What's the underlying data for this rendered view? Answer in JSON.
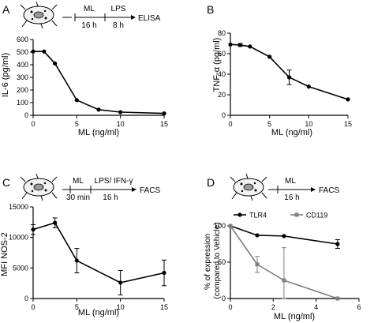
{
  "panels": [
    {
      "id": "A",
      "schematic": {
        "steps": [
          "ML",
          "LPS"
        ],
        "times": [
          "16 h",
          "8 h"
        ],
        "end": "ELISA"
      },
      "chart_data": {
        "type": "line",
        "xlabel": "ML (ng/ml)",
        "ylabel": "IL-6 (pg/ml)",
        "xlim": [
          0,
          15
        ],
        "ylim": [
          0,
          600
        ],
        "xticks": [
          0,
          5,
          10,
          15
        ],
        "yticks": [
          0,
          100,
          200,
          300,
          400,
          500,
          600
        ],
        "series": [
          {
            "x": [
              0,
              1.25,
              2.5,
              5,
              7.5,
              10,
              15
            ],
            "y": [
              505,
              505,
              410,
              120,
              45,
              25,
              15
            ],
            "err": [
              0,
              0,
              0,
              0,
              0,
              0,
              0
            ],
            "color": "#000000",
            "marker": "circle"
          }
        ]
      }
    },
    {
      "id": "B",
      "chart_data": {
        "type": "line",
        "xlabel": "ML (ng/ml)",
        "ylabel": "TNF-α (pg/ml)",
        "xlim": [
          0,
          15
        ],
        "ylim": [
          0,
          80
        ],
        "xticks": [
          0,
          5,
          10,
          15
        ],
        "yticks": [
          0,
          20,
          40,
          60,
          80
        ],
        "series": [
          {
            "x": [
              0,
              1.25,
              2.5,
              5,
              7.5,
              10,
              15
            ],
            "y": [
              69,
              68.5,
              67,
              57,
              37,
              28,
              15.5
            ],
            "err": [
              0,
              1.5,
              0,
              0,
              7,
              0,
              0
            ],
            "color": "#000000",
            "marker": "circle"
          }
        ]
      }
    },
    {
      "id": "C",
      "schematic": {
        "steps": [
          "ML",
          "LPS/ IFN-γ"
        ],
        "times": [
          "30 min",
          "16 h"
        ],
        "end": "FACS"
      },
      "chart_data": {
        "type": "line",
        "xlabel": "ML (ng/ml)",
        "ylabel": "MFI NOS-2",
        "xlim": [
          0,
          15
        ],
        "ylim": [
          0,
          15000
        ],
        "xticks": [
          0,
          5,
          10,
          15
        ],
        "yticks": [
          0,
          5000,
          10000,
          15000
        ],
        "series": [
          {
            "x": [
              0,
              2.5,
              5,
              10,
              15
            ],
            "y": [
              11300,
              12400,
              6200,
              2600,
              4200
            ],
            "err": [
              800,
              800,
              2000,
              2000,
              2100
            ],
            "color": "#000000",
            "marker": "circle"
          }
        ]
      }
    },
    {
      "id": "D",
      "schematic": {
        "steps": [
          "ML"
        ],
        "times": [
          "16 h"
        ],
        "end": "FACS"
      },
      "chart_data": {
        "type": "line",
        "xlabel": "ML (ng/ml)",
        "ylabel": "% of expression\n(compared to Vehicle)",
        "xlim": [
          0,
          6
        ],
        "ylim": [
          0,
          100
        ],
        "xticks": [
          0,
          2,
          4,
          6
        ],
        "yticks": [
          0,
          50,
          100
        ],
        "legend": "top-left",
        "series": [
          {
            "name": "TLR4",
            "x": [
              0,
              1.25,
              2.5,
              5
            ],
            "y": [
              100,
              87,
              86,
              75
            ],
            "err": [
              0,
              0,
              0,
              6
            ],
            "color": "#000000",
            "marker": "circle"
          },
          {
            "name": "CD119",
            "x": [
              0,
              1.25,
              2.5,
              5
            ],
            "y": [
              100,
              47,
              25,
              0
            ],
            "err": [
              0,
              11,
              45,
              0
            ],
            "color": "#7f7f7f",
            "marker": "square"
          }
        ]
      }
    }
  ]
}
